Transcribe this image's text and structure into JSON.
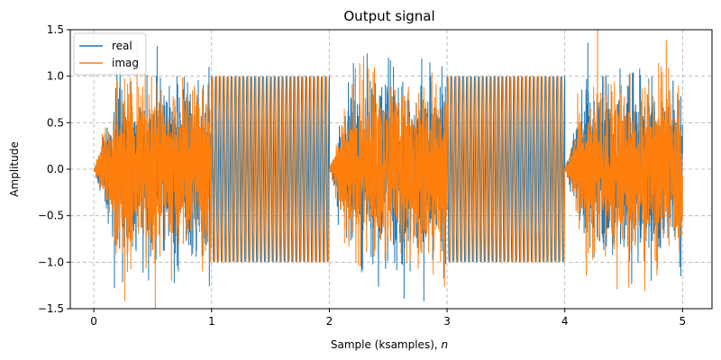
{
  "chart_data": {
    "type": "line",
    "title": "Output signal",
    "xlabel": "Sample (ksamples), ",
    "xlabel_italic": "n",
    "ylabel": "Amplitude",
    "xlim": [
      -0.2,
      5.25
    ],
    "ylim": [
      -1.5,
      1.5
    ],
    "xticks": [
      0,
      1,
      2,
      3,
      4,
      5
    ],
    "xtick_labels": [
      "0",
      "1",
      "2",
      "3",
      "4",
      "5"
    ],
    "yticks": [
      -1.5,
      -1.0,
      -0.5,
      0.0,
      0.5,
      1.0,
      1.5
    ],
    "ytick_labels": [
      "−1.5",
      "−1.0",
      "−0.5",
      "0.0",
      "0.5",
      "1.0",
      "1.5"
    ],
    "grid": true,
    "legend": "top-left",
    "series": [
      {
        "name": "real",
        "color": "#1f77b4"
      },
      {
        "name": "imag",
        "color": "#ff7f0e"
      }
    ],
    "segments": [
      {
        "x_start": 0,
        "x_end": 1,
        "kind": "noise",
        "std_range": [
          0.0,
          0.42
        ]
      },
      {
        "x_start": 1,
        "x_end": 2,
        "kind": "tone",
        "amplitude": 1.0,
        "cycles": 30
      },
      {
        "x_start": 2,
        "x_end": 3,
        "kind": "noise",
        "std_range": [
          0.0,
          0.42
        ]
      },
      {
        "x_start": 3,
        "x_end": 4,
        "kind": "tone",
        "amplitude": 1.0,
        "cycles": 30
      },
      {
        "x_start": 4,
        "x_end": 5,
        "kind": "noise",
        "std_range": [
          0.0,
          0.42
        ]
      }
    ]
  }
}
